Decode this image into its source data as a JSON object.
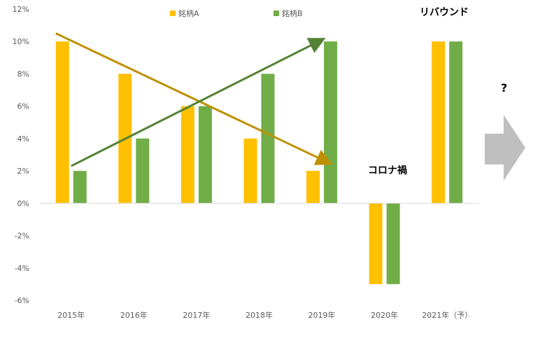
{
  "chart_data": {
    "type": "bar",
    "categories": [
      "2015年",
      "2016年",
      "2017年",
      "2018年",
      "2019年",
      "2020年",
      "2021年（予）"
    ],
    "series": [
      {
        "name": "銘柄A",
        "color": "#FFC000",
        "values": [
          10,
          8,
          6,
          4,
          2,
          -5,
          10
        ]
      },
      {
        "name": "銘柄B",
        "color": "#70AD47",
        "values": [
          2,
          4,
          6,
          8,
          10,
          -5,
          10
        ]
      }
    ],
    "y_ticks": [
      "12%",
      "10%",
      "8%",
      "6%",
      "4%",
      "2%",
      "0%",
      "-2%",
      "-4%",
      "-6%"
    ],
    "ylim": [
      -6,
      12
    ],
    "y_unit": "%",
    "legend_position": "top",
    "grid": false,
    "trend_arrows": [
      {
        "series": "銘柄A",
        "from": {
          "category": "2015年",
          "value": 10.5
        },
        "to": {
          "category": "2019年",
          "value": 2.5
        },
        "color": "#BF9000"
      },
      {
        "series": "銘柄B",
        "from": {
          "category": "2015年",
          "value": 2.3
        },
        "to": {
          "category": "2019年",
          "value": 10.1
        },
        "color": "#548235"
      }
    ],
    "annotations": {
      "rebound": "リバウンド",
      "covid": "コロナ禍",
      "question": "?"
    },
    "future_arrow_color": "#BFBFBF"
  }
}
